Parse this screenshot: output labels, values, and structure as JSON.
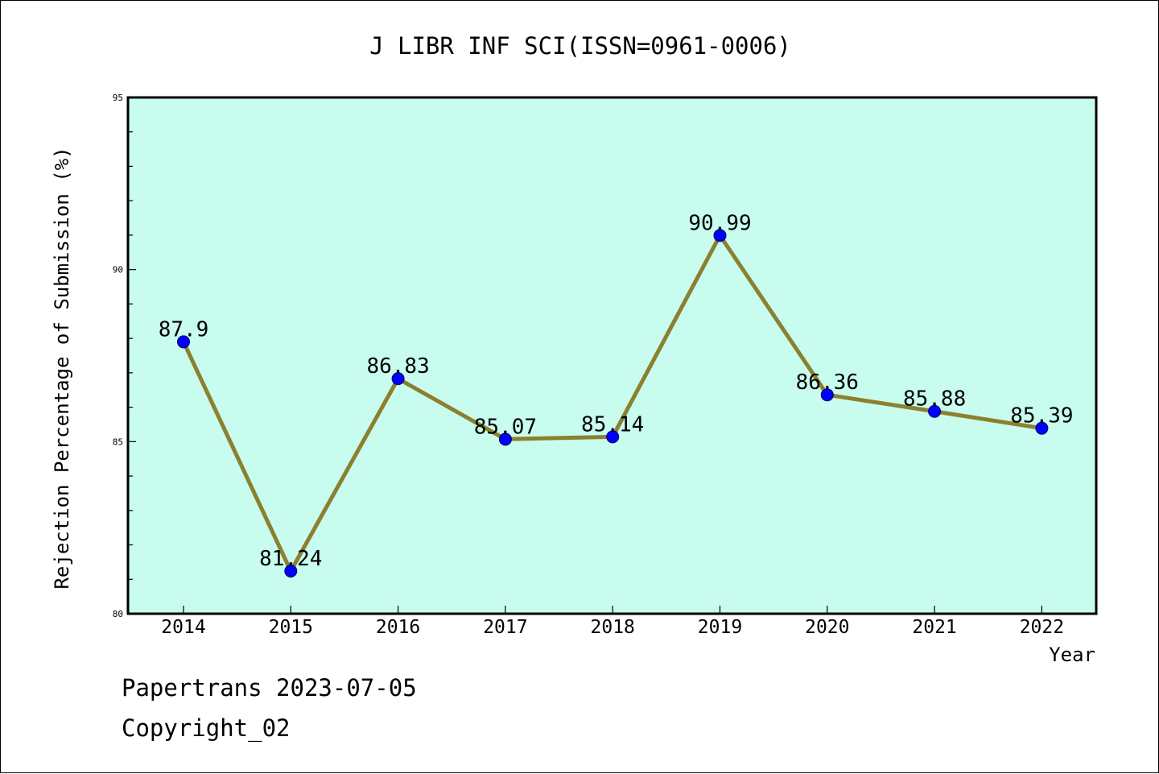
{
  "footer": {
    "line1": "Papertrans 2023-07-05",
    "line2": "Copyright_02"
  },
  "colors": {
    "plot_background": "#c8fcee",
    "line": "#8b8030",
    "marker": "#0000ff"
  },
  "chart_data": {
    "type": "line",
    "title": "J LIBR INF SCI(ISSN=0961-0006)",
    "xlabel": "Year",
    "ylabel": "Rejection Percentage of Submission (%)",
    "categories": [
      "2014",
      "2015",
      "2016",
      "2017",
      "2018",
      "2019",
      "2020",
      "2021",
      "2022"
    ],
    "values": [
      87.9,
      81.24,
      86.83,
      85.07,
      85.14,
      90.99,
      86.36,
      85.88,
      85.39
    ],
    "data_labels": [
      "87.9",
      "81.24",
      "86.83",
      "85.07",
      "85.14",
      "90.99",
      "86.36",
      "85.88",
      "85.39"
    ],
    "ylim": [
      80,
      95
    ],
    "yticks": [
      "80",
      "85",
      "90",
      "95"
    ],
    "grid": false,
    "legend": "none"
  }
}
